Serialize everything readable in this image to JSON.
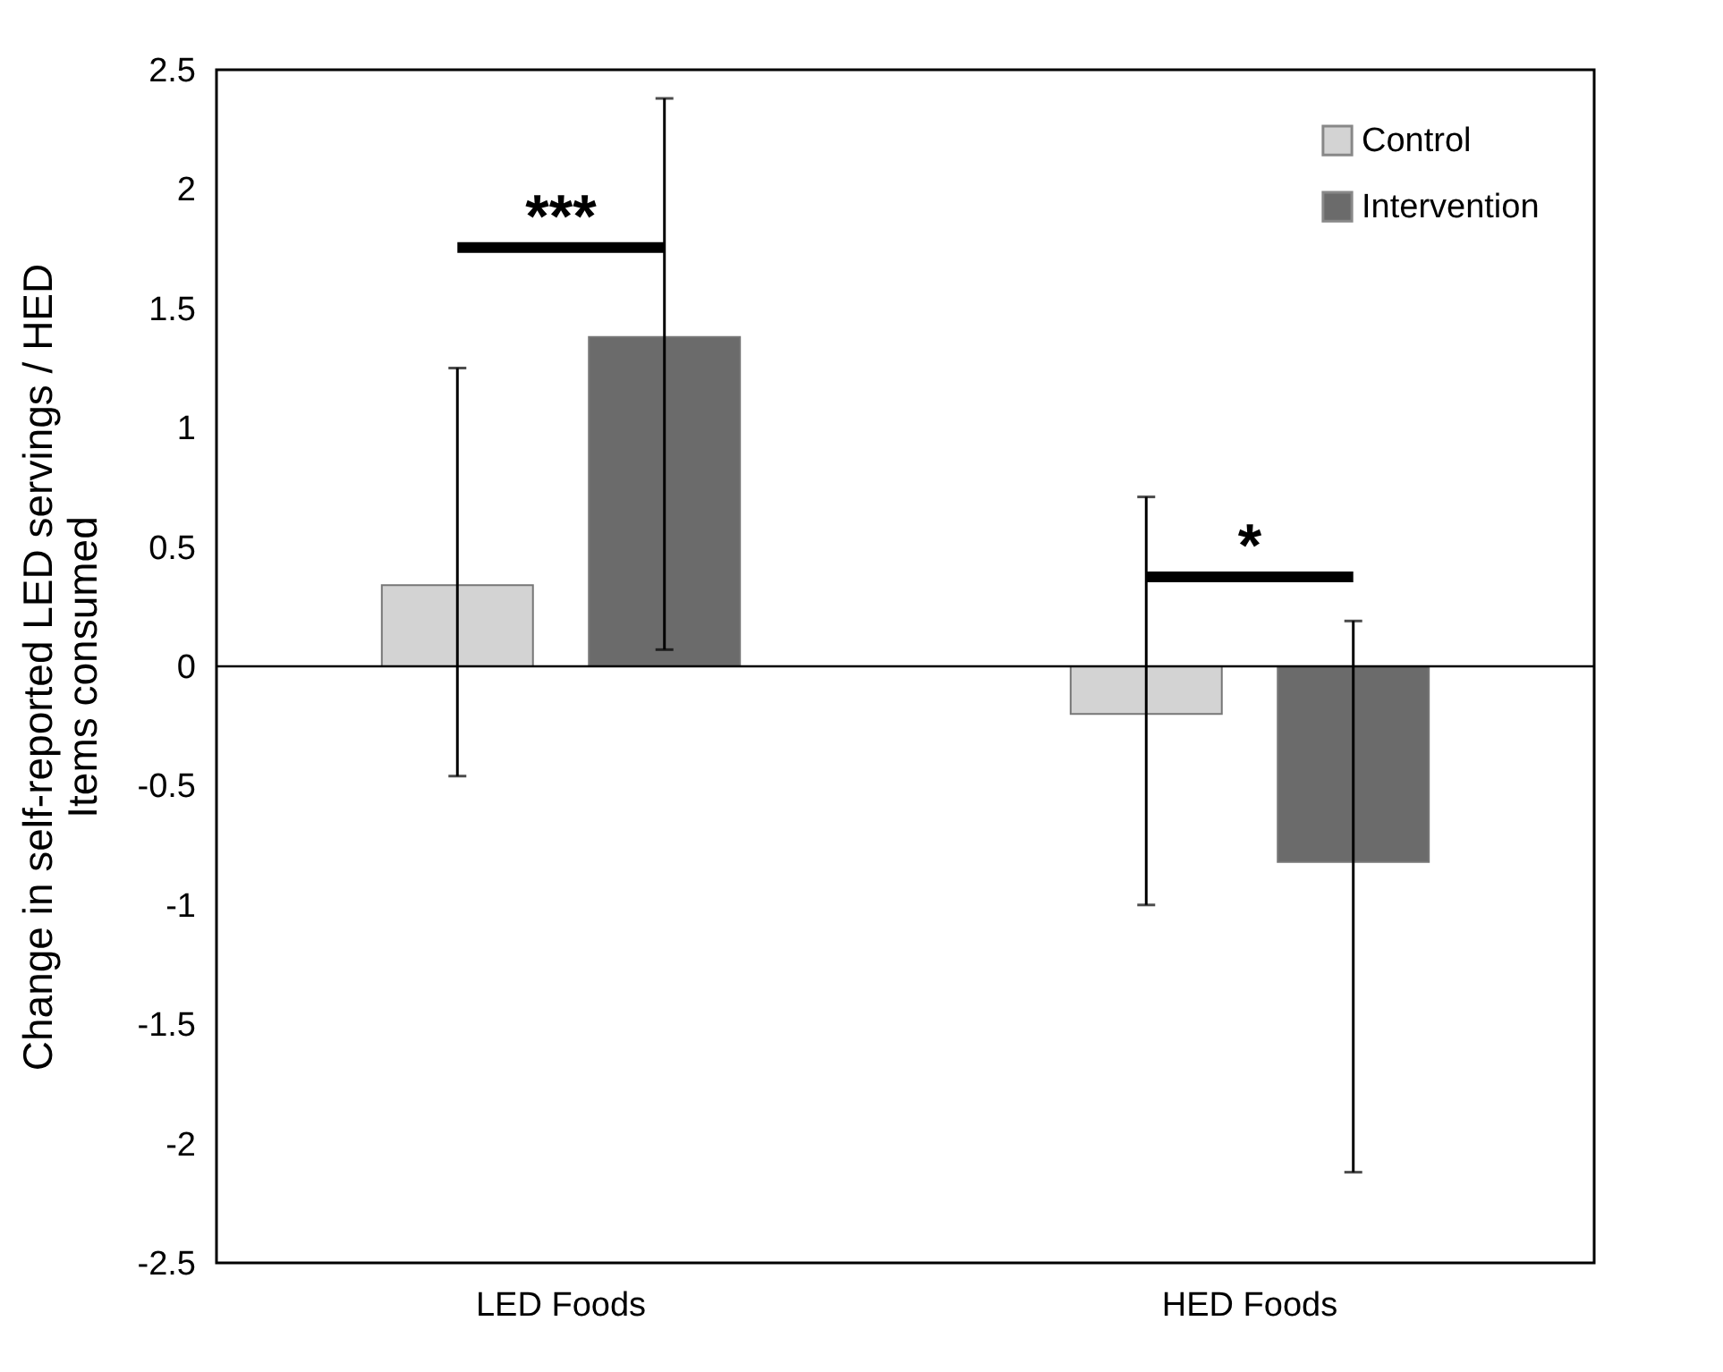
{
  "chart_data": {
    "type": "bar",
    "ylabel": "Change in self-reported LED servings / HED Items consumed",
    "categories": [
      "LED Foods",
      "HED Foods"
    ],
    "series": [
      {
        "name": "Control",
        "color": "#d3d3d3",
        "values": [
          0.34,
          -0.2
        ],
        "errors": [
          [
            -0.46,
            1.25
          ],
          [
            -1.0,
            0.71
          ]
        ]
      },
      {
        "name": "Intervention",
        "color": "#6b6b6b",
        "values": [
          1.38,
          -0.82
        ],
        "errors": [
          [
            0.07,
            2.38
          ],
          [
            -2.12,
            0.19
          ]
        ]
      }
    ],
    "ylim": [
      -2.5,
      2.5
    ],
    "yticks": [
      {
        "value": -2.5,
        "label": "-2.5"
      },
      {
        "value": -2,
        "label": "-2"
      },
      {
        "value": -1.5,
        "label": "-1.5"
      },
      {
        "value": -1,
        "label": "-1"
      },
      {
        "value": -0.5,
        "label": "-0.5"
      },
      {
        "value": 0,
        "label": "0"
      },
      {
        "value": 0.5,
        "label": "0.5"
      },
      {
        "value": 1,
        "label": "1"
      },
      {
        "value": 1.5,
        "label": "1.5"
      },
      {
        "value": 2,
        "label": "2"
      },
      {
        "value": 2.5,
        "label": "2.5"
      }
    ],
    "annotations": [
      "***",
      "*"
    ],
    "legend": "top right"
  }
}
